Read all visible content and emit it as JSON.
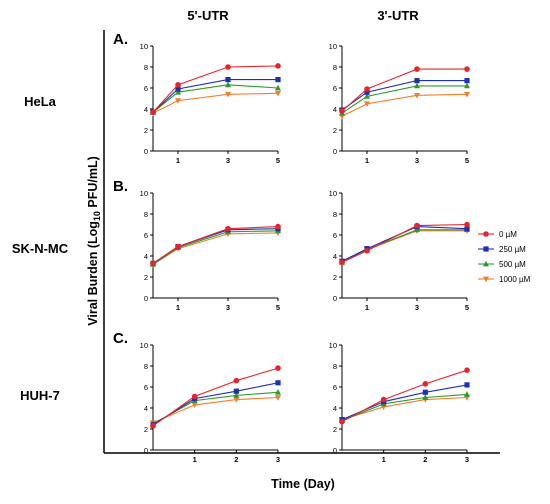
{
  "column_titles": [
    "5'-UTR",
    "3'-UTR"
  ],
  "row_titles": [
    "HeLa",
    "SK-N-MC",
    "HUH-7"
  ],
  "ylabel_parts": [
    "Viral Burden (Log",
    "10",
    " PFU/mL)"
  ],
  "xlabel": "Time (Day)",
  "legend": {
    "placement": "right",
    "items": [
      {
        "label": "0 µM",
        "color": "#e8242b",
        "marker": "circle"
      },
      {
        "label": "250 µM",
        "color": "#1f2fb5",
        "marker": "square"
      },
      {
        "label": "500 µM",
        "color": "#2e9a2e",
        "marker": "triangle"
      },
      {
        "label": "1000 µM",
        "color": "#f27d2a",
        "marker": "inverted-triangle"
      }
    ]
  },
  "chart_data": [
    {
      "type": "line",
      "cell_line": "HeLa",
      "region": "5'-UTR",
      "panel_letter": "A.",
      "x": [
        0,
        1,
        3,
        5
      ],
      "xticks": [
        1,
        3,
        5
      ],
      "xlim": [
        0,
        5
      ],
      "yticks": [
        0,
        2,
        4,
        6,
        8,
        10
      ],
      "ylim": [
        0,
        10
      ],
      "series": [
        {
          "name": "0 µM",
          "values": [
            3.7,
            6.3,
            8.0,
            8.1
          ]
        },
        {
          "name": "250 µM",
          "values": [
            3.7,
            5.9,
            6.8,
            6.8
          ]
        },
        {
          "name": "500 µM",
          "values": [
            3.7,
            5.6,
            6.3,
            6.0
          ]
        },
        {
          "name": "1000 µM",
          "values": [
            3.6,
            4.8,
            5.4,
            5.5
          ]
        }
      ]
    },
    {
      "type": "line",
      "cell_line": "HeLa",
      "region": "3'-UTR",
      "panel_letter": "",
      "x": [
        0,
        1,
        3,
        5
      ],
      "xticks": [
        1,
        3,
        5
      ],
      "xlim": [
        0,
        5
      ],
      "yticks": [
        0,
        2,
        4,
        6,
        8,
        10
      ],
      "ylim": [
        0,
        10
      ],
      "series": [
        {
          "name": "0 µM",
          "values": [
            3.8,
            5.9,
            7.8,
            7.8
          ]
        },
        {
          "name": "250 µM",
          "values": [
            3.9,
            5.6,
            6.7,
            6.7
          ]
        },
        {
          "name": "500 µM",
          "values": [
            3.6,
            5.2,
            6.2,
            6.2
          ]
        },
        {
          "name": "1000 µM",
          "values": [
            3.3,
            4.5,
            5.3,
            5.4
          ]
        }
      ]
    },
    {
      "type": "line",
      "cell_line": "SK-N-MC",
      "region": "5'-UTR",
      "panel_letter": "B.",
      "x": [
        0,
        1,
        3,
        5
      ],
      "xticks": [
        1,
        3,
        5
      ],
      "xlim": [
        0,
        5
      ],
      "yticks": [
        0,
        2,
        4,
        6,
        8,
        10
      ],
      "ylim": [
        0,
        10
      ],
      "series": [
        {
          "name": "0 µM",
          "values": [
            3.3,
            4.9,
            6.6,
            6.8
          ]
        },
        {
          "name": "250 µM",
          "values": [
            3.3,
            4.9,
            6.5,
            6.6
          ]
        },
        {
          "name": "500 µM",
          "values": [
            3.2,
            4.8,
            6.3,
            6.4
          ]
        },
        {
          "name": "1000 µM",
          "values": [
            3.2,
            4.7,
            6.1,
            6.2
          ]
        }
      ]
    },
    {
      "type": "line",
      "cell_line": "SK-N-MC",
      "region": "3'-UTR",
      "panel_letter": "",
      "x": [
        0,
        1,
        3,
        5
      ],
      "xticks": [
        1,
        3,
        5
      ],
      "xlim": [
        0,
        5
      ],
      "yticks": [
        0,
        2,
        4,
        6,
        8,
        10
      ],
      "ylim": [
        0,
        10
      ],
      "series": [
        {
          "name": "0 µM",
          "values": [
            3.4,
            4.5,
            6.9,
            7.0
          ]
        },
        {
          "name": "250 µM",
          "values": [
            3.5,
            4.7,
            6.8,
            6.6
          ]
        },
        {
          "name": "500 µM",
          "values": [
            3.4,
            4.6,
            6.5,
            6.5
          ]
        },
        {
          "name": "1000 µM",
          "values": [
            3.5,
            4.6,
            6.4,
            6.4
          ]
        }
      ]
    },
    {
      "type": "line",
      "cell_line": "HUH-7",
      "region": "5'-UTR",
      "panel_letter": "C.",
      "x": [
        0,
        1,
        2,
        3
      ],
      "xticks": [
        1,
        2,
        3
      ],
      "xlim": [
        0,
        3
      ],
      "yticks": [
        0,
        2,
        4,
        6,
        8,
        10
      ],
      "ylim": [
        0,
        10
      ],
      "series": [
        {
          "name": "0 µM",
          "values": [
            2.3,
            5.1,
            6.6,
            7.8
          ]
        },
        {
          "name": "250 µM",
          "values": [
            2.4,
            4.9,
            5.6,
            6.4
          ]
        },
        {
          "name": "500 µM",
          "values": [
            2.5,
            4.7,
            5.2,
            5.5
          ]
        },
        {
          "name": "1000 µM",
          "values": [
            2.6,
            4.3,
            4.8,
            5.0
          ]
        }
      ]
    },
    {
      "type": "line",
      "cell_line": "HUH-7",
      "region": "3'-UTR",
      "panel_letter": "",
      "x": [
        0,
        1,
        2,
        3
      ],
      "xticks": [
        1,
        2,
        3
      ],
      "xlim": [
        0,
        3
      ],
      "yticks": [
        0,
        2,
        4,
        6,
        8,
        10
      ],
      "ylim": [
        0,
        10
      ],
      "series": [
        {
          "name": "0 µM",
          "values": [
            2.7,
            4.8,
            6.3,
            7.6
          ]
        },
        {
          "name": "250 µM",
          "values": [
            2.9,
            4.6,
            5.5,
            6.2
          ]
        },
        {
          "name": "500 µM",
          "values": [
            2.8,
            4.4,
            5.0,
            5.3
          ]
        },
        {
          "name": "1000 µM",
          "values": [
            2.9,
            4.1,
            4.8,
            5.0
          ]
        }
      ]
    }
  ]
}
